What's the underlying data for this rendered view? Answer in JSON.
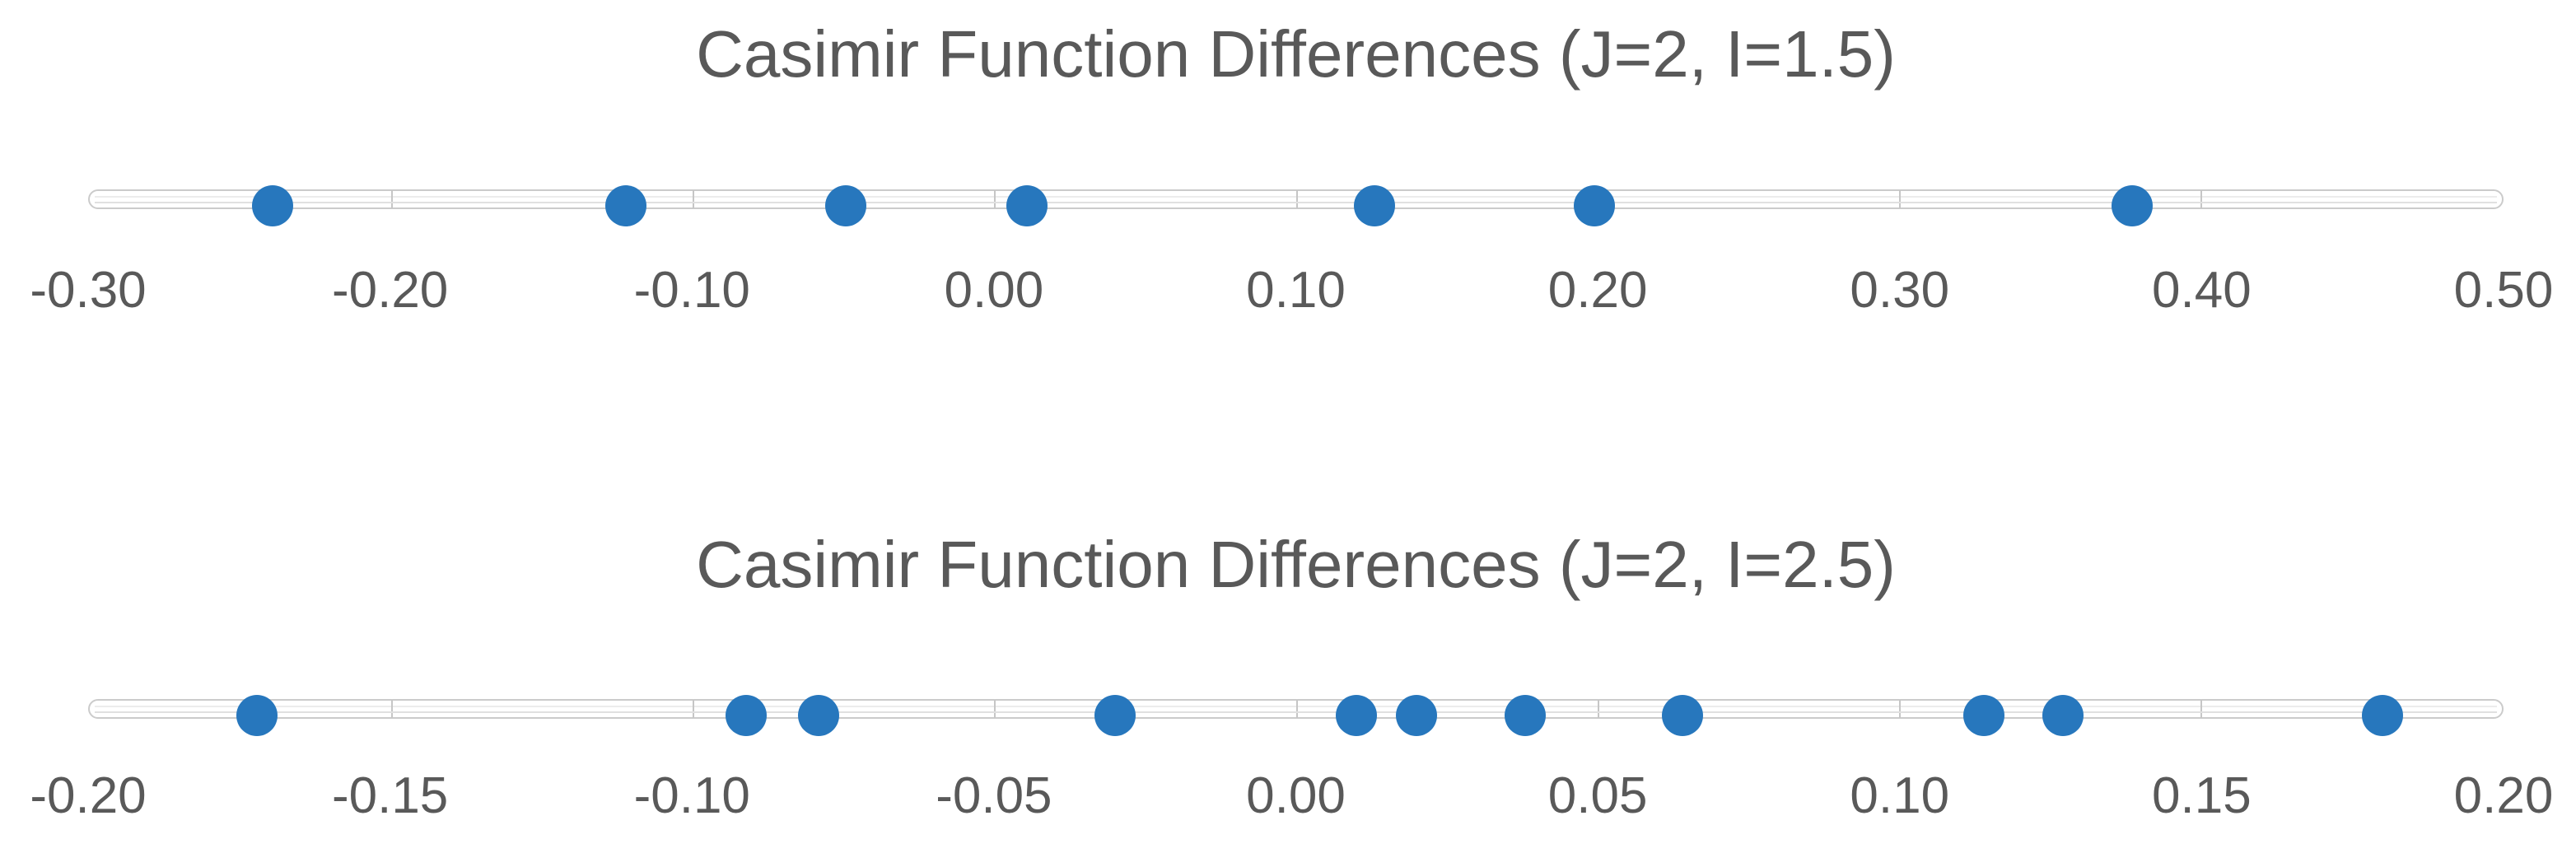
{
  "page": {
    "background": "#ffffff",
    "description": "Two horizontal one-dimensional scatter (strip) plots stacked vertically on a white background"
  },
  "colors": {
    "marker_blue": "#2777BD",
    "track_border": "#cbcbcb",
    "track_fill": "#ffffff",
    "tick_gray": "#c6c6c6",
    "text_gray": "#595959"
  },
  "chart_data": [
    {
      "type": "scatter",
      "title": "Casimir Function Differences (J=2, I=1.5)",
      "x": [
        -0.239,
        -0.122,
        -0.049,
        0.011,
        0.126,
        0.199,
        0.377
      ],
      "y": [
        0,
        0,
        0,
        0,
        0,
        0,
        0
      ],
      "xlim": [
        -0.3,
        0.5
      ],
      "xticks": [
        -0.3,
        -0.2,
        -0.1,
        0.0,
        0.1,
        0.2,
        0.3,
        0.4,
        0.5
      ],
      "xtick_labels": [
        "-0.30",
        "-0.20",
        "-0.10",
        "0.00",
        "0.10",
        "0.20",
        "0.30",
        "0.40",
        "0.50"
      ],
      "xlabel": "",
      "ylabel": "",
      "grid": false,
      "legend_position": "none",
      "marker_color": "#2777BD",
      "marker_shape": "circle",
      "axis_style": "horizontal capsule track with tick marks"
    },
    {
      "type": "scatter",
      "title": "Casimir Function Differences (J=2, I=2.5)",
      "x": [
        -0.172,
        -0.091,
        -0.079,
        -0.03,
        0.01,
        0.02,
        0.038,
        0.064,
        0.114,
        0.127,
        0.18
      ],
      "y": [
        0,
        0,
        0,
        0,
        0,
        0,
        0,
        0,
        0,
        0,
        0
      ],
      "xlim": [
        -0.2,
        0.2
      ],
      "xticks": [
        -0.2,
        -0.15,
        -0.1,
        -0.05,
        0.0,
        0.05,
        0.1,
        0.15,
        0.2
      ],
      "xtick_labels": [
        "-0.20",
        "-0.15",
        "-0.10",
        "-0.05",
        "0.00",
        "0.05",
        "0.10",
        "0.15",
        "0.20"
      ],
      "xlabel": "",
      "ylabel": "",
      "grid": false,
      "legend_position": "none",
      "marker_color": "#2777BD",
      "marker_shape": "circle",
      "axis_style": "horizontal capsule track with tick marks"
    }
  ]
}
